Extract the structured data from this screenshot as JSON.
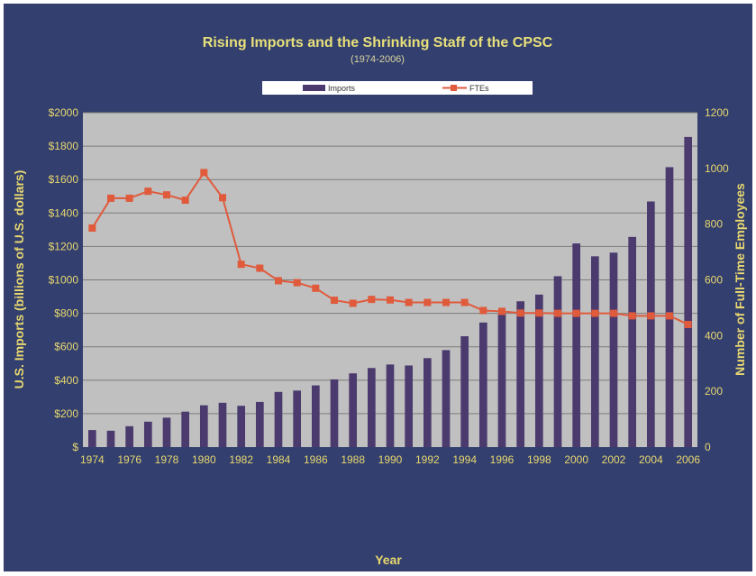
{
  "chart_data": {
    "type": "bar",
    "title": "Rising Imports and the Shrinking Staff of the CPSC",
    "subtitle": "(1974-2006)",
    "xlabel": "Year",
    "ylabel": "U.S. Imports (billions of U.S. dollars)",
    "y2label": "Number of Full-Time Employees",
    "ylim": [
      0,
      2000
    ],
    "y2lim": [
      0,
      1200
    ],
    "y_ticks": [
      "$",
      "$200",
      "$400",
      "$600",
      "$800",
      "$1000",
      "$1200",
      "$1400",
      "$1600",
      "$1800",
      "$2000"
    ],
    "y2_ticks": [
      "0",
      "200",
      "400",
      "600",
      "800",
      "1000",
      "1200"
    ],
    "x_tick_labels": [
      "1974",
      "1976",
      "1978",
      "1980",
      "1982",
      "1984",
      "1986",
      "1988",
      "1990",
      "1992",
      "1994",
      "1996",
      "1998",
      "2000",
      "2002",
      "2004",
      "2006"
    ],
    "grid": true,
    "legend_position": "top-center",
    "categories": [
      "1974",
      "1975",
      "1976",
      "1977",
      "1978",
      "1979",
      "1980",
      "1981",
      "1982",
      "1983",
      "1984",
      "1985",
      "1986",
      "1987",
      "1988",
      "1989",
      "1990",
      "1991",
      "1992",
      "1993",
      "1994",
      "1995",
      "1996",
      "1997",
      "1998",
      "1999",
      "2000",
      "2001",
      "2002",
      "2003",
      "2004",
      "2005",
      "2006"
    ],
    "series": [
      {
        "name": "Imports",
        "kind": "bar",
        "axis": "left",
        "color": "#4a3a6e",
        "values": [
          102,
          98,
          125,
          152,
          176,
          212,
          250,
          265,
          247,
          270,
          330,
          338,
          369,
          405,
          441,
          473,
          494,
          488,
          532,
          580,
          663,
          745,
          800,
          872,
          912,
          1022,
          1218,
          1141,
          1163,
          1257,
          1469,
          1674,
          1855
        ]
      },
      {
        "name": "FTEs",
        "kind": "line",
        "axis": "right",
        "color": "#e05a3c",
        "values": [
          786,
          893,
          893,
          918,
          905,
          886,
          985,
          895,
          656,
          642,
          597,
          590,
          570,
          527,
          516,
          530,
          528,
          519,
          519,
          519,
          519,
          490,
          487,
          481,
          481,
          480,
          480,
          480,
          480,
          471,
          471,
          471,
          440
        ]
      }
    ]
  }
}
